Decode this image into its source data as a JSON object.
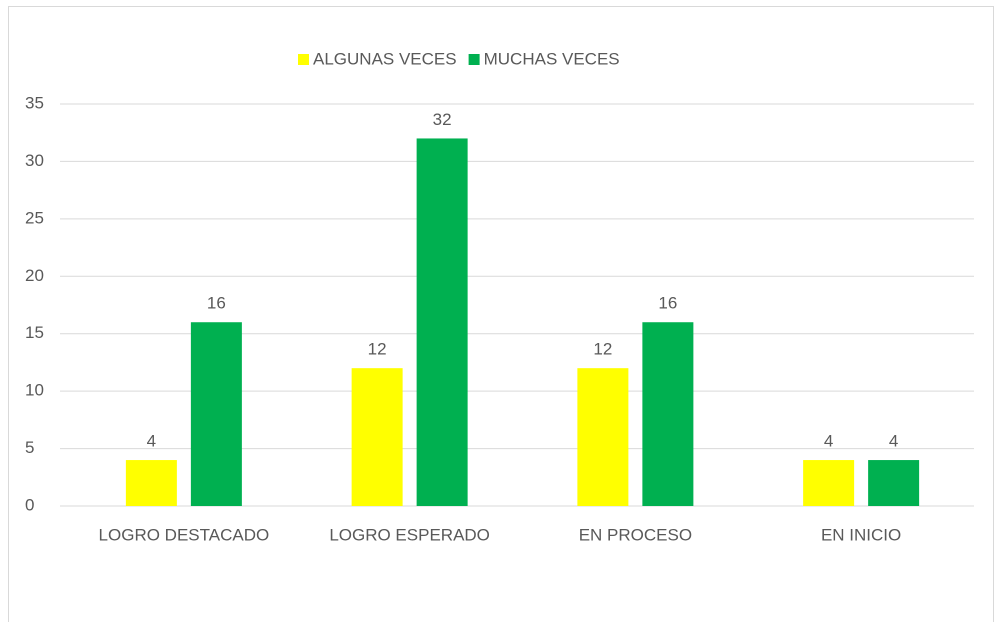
{
  "chart_data": {
    "type": "bar",
    "categories": [
      "LOGRO DESTACADO",
      "LOGRO ESPERADO",
      "EN PROCESO",
      "EN INICIO"
    ],
    "series": [
      {
        "name": "ALGUNAS VECES",
        "color": "#ffff00",
        "values": [
          4,
          12,
          12,
          4
        ]
      },
      {
        "name": "MUCHAS VECES",
        "color": "#00b050",
        "values": [
          16,
          32,
          16,
          4
        ]
      }
    ],
    "ylim": [
      0,
      35
    ],
    "yticks": [
      0,
      5,
      10,
      15,
      20,
      25,
      30,
      35
    ],
    "grid": true,
    "legend": "top"
  }
}
